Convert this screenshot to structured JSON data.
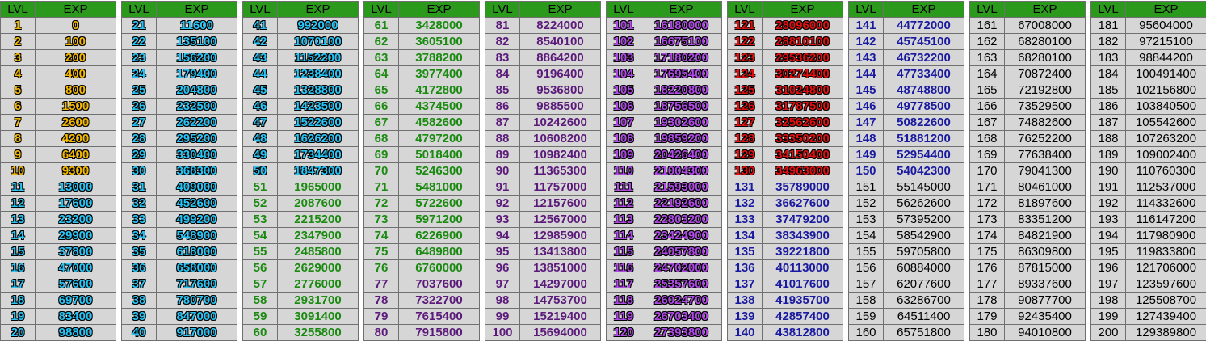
{
  "headers": {
    "level": "LVL",
    "exp": "EXP"
  },
  "tables": [
    {
      "color": "#f5b800",
      "rows": [
        [
          "1",
          "0"
        ],
        [
          "2",
          "100"
        ],
        [
          "3",
          "200"
        ],
        [
          "4",
          "400"
        ],
        [
          "5",
          "800"
        ],
        [
          "6",
          "1500"
        ],
        [
          "7",
          "2600"
        ],
        [
          "8",
          "4200"
        ],
        [
          "9",
          "6400"
        ],
        [
          "10",
          "9300"
        ],
        [
          "11",
          "13000"
        ],
        [
          "12",
          "17600"
        ],
        [
          "13",
          "23200"
        ],
        [
          "14",
          "29900"
        ],
        [
          "15",
          "37800"
        ],
        [
          "16",
          "47000"
        ],
        [
          "17",
          "57600"
        ],
        [
          "18",
          "69700"
        ],
        [
          "19",
          "83400"
        ],
        [
          "20",
          "98800"
        ]
      ],
      "colors": [
        "#f5b800",
        "#f5b800",
        "#f5b800",
        "#f5b800",
        "#f5b800",
        "#f5b800",
        "#f5b800",
        "#f5b800",
        "#f5b800",
        "#f5b800",
        "#29c5f6",
        "#29c5f6",
        "#29c5f6",
        "#29c5f6",
        "#29c5f6",
        "#29c5f6",
        "#29c5f6",
        "#29c5f6",
        "#29c5f6",
        "#29c5f6"
      ]
    },
    {
      "color": "#29c5f6",
      "rows": [
        [
          "21",
          "11600"
        ],
        [
          "22",
          "135100"
        ],
        [
          "23",
          "156200"
        ],
        [
          "24",
          "179400"
        ],
        [
          "25",
          "204800"
        ],
        [
          "26",
          "232500"
        ],
        [
          "27",
          "262200"
        ],
        [
          "28",
          "295200"
        ],
        [
          "29",
          "330400"
        ],
        [
          "30",
          "368300"
        ],
        [
          "31",
          "409000"
        ],
        [
          "32",
          "452600"
        ],
        [
          "33",
          "499200"
        ],
        [
          "34",
          "548900"
        ],
        [
          "35",
          "618000"
        ],
        [
          "36",
          "658000"
        ],
        [
          "37",
          "717600"
        ],
        [
          "38",
          "780700"
        ],
        [
          "39",
          "847000"
        ],
        [
          "40",
          "917000"
        ]
      ],
      "colors": []
    },
    {
      "color": "#29c5f6",
      "rows": [
        [
          "41",
          "992000"
        ],
        [
          "42",
          "1070100"
        ],
        [
          "43",
          "1152200"
        ],
        [
          "44",
          "1238400"
        ],
        [
          "45",
          "1328800"
        ],
        [
          "46",
          "1423500"
        ],
        [
          "47",
          "1522600"
        ],
        [
          "48",
          "1626200"
        ],
        [
          "49",
          "1734400"
        ],
        [
          "50",
          "1847300"
        ],
        [
          "51",
          "1965000"
        ],
        [
          "52",
          "2087600"
        ],
        [
          "53",
          "2215200"
        ],
        [
          "54",
          "2347900"
        ],
        [
          "55",
          "2485800"
        ],
        [
          "56",
          "2629000"
        ],
        [
          "57",
          "2776000"
        ],
        [
          "58",
          "2931700"
        ],
        [
          "59",
          "3091400"
        ],
        [
          "60",
          "3255800"
        ]
      ],
      "colors": [
        "#29c5f6",
        "#29c5f6",
        "#29c5f6",
        "#29c5f6",
        "#29c5f6",
        "#29c5f6",
        "#29c5f6",
        "#29c5f6",
        "#29c5f6",
        "#29c5f6",
        "#1a8a10",
        "#1a8a10",
        "#1a8a10",
        "#1a8a10",
        "#1a8a10",
        "#1a8a10",
        "#1a8a10",
        "#1a8a10",
        "#1a8a10",
        "#1a8a10"
      ]
    },
    {
      "color": "#1a8a10",
      "rows": [
        [
          "61",
          "3428000"
        ],
        [
          "62",
          "3605100"
        ],
        [
          "63",
          "3788200"
        ],
        [
          "64",
          "3977400"
        ],
        [
          "65",
          "4172800"
        ],
        [
          "66",
          "4374500"
        ],
        [
          "67",
          "4582600"
        ],
        [
          "68",
          "4797200"
        ],
        [
          "69",
          "5018400"
        ],
        [
          "70",
          "5246300"
        ],
        [
          "71",
          "5481000"
        ],
        [
          "72",
          "5722600"
        ],
        [
          "73",
          "5971200"
        ],
        [
          "74",
          "6226900"
        ],
        [
          "75",
          "6489800"
        ],
        [
          "76",
          "6760000"
        ],
        [
          "77",
          "7037600"
        ],
        [
          "78",
          "7322700"
        ],
        [
          "79",
          "7615400"
        ],
        [
          "80",
          "7915800"
        ]
      ],
      "colors": [
        "#1a8a10",
        "#1a8a10",
        "#1a8a10",
        "#1a8a10",
        "#1a8a10",
        "#1a8a10",
        "#1a8a10",
        "#1a8a10",
        "#1a8a10",
        "#1a8a10",
        "#1a8a10",
        "#1a8a10",
        "#1a8a10",
        "#1a8a10",
        "#1a8a10",
        "#1a8a10",
        "#5b1a7a",
        "#5b1a7a",
        "#5b1a7a",
        "#5b1a7a"
      ]
    },
    {
      "color": "#5b1a7a",
      "rows": [
        [
          "81",
          "8224000"
        ],
        [
          "82",
          "8540100"
        ],
        [
          "83",
          "8864200"
        ],
        [
          "84",
          "9196400"
        ],
        [
          "85",
          "9536800"
        ],
        [
          "86",
          "9885500"
        ],
        [
          "87",
          "10242600"
        ],
        [
          "88",
          "10608200"
        ],
        [
          "89",
          "10982400"
        ],
        [
          "90",
          "11365300"
        ],
        [
          "91",
          "11757000"
        ],
        [
          "92",
          "12157600"
        ],
        [
          "93",
          "12567000"
        ],
        [
          "94",
          "12985900"
        ],
        [
          "95",
          "13413800"
        ],
        [
          "96",
          "13851000"
        ],
        [
          "97",
          "14297000"
        ],
        [
          "98",
          "14753700"
        ],
        [
          "99",
          "15219400"
        ],
        [
          "100",
          "15694000"
        ]
      ],
      "colors": []
    },
    {
      "color": "#b04ae6",
      "rows": [
        [
          "101",
          "16180000"
        ],
        [
          "102",
          "16675100"
        ],
        [
          "103",
          "17180200"
        ],
        [
          "104",
          "17695400"
        ],
        [
          "105",
          "18220800"
        ],
        [
          "106",
          "18756500"
        ],
        [
          "107",
          "19302600"
        ],
        [
          "108",
          "19859200"
        ],
        [
          "109",
          "20426400"
        ],
        [
          "110",
          "21004300"
        ],
        [
          "111",
          "21593000"
        ],
        [
          "112",
          "22192600"
        ],
        [
          "113",
          "22803200"
        ],
        [
          "114",
          "23424900"
        ],
        [
          "115",
          "24057800"
        ],
        [
          "116",
          "24702000"
        ],
        [
          "117",
          "25357600"
        ],
        [
          "118",
          "26024700"
        ],
        [
          "119",
          "26703400"
        ],
        [
          "120",
          "27393800"
        ]
      ],
      "colors": []
    },
    {
      "color": "#e01010",
      "rows": [
        [
          "121",
          "28096000"
        ],
        [
          "122",
          "28810100"
        ],
        [
          "123",
          "29536200"
        ],
        [
          "124",
          "30274400"
        ],
        [
          "125",
          "31024800"
        ],
        [
          "126",
          "31787500"
        ],
        [
          "127",
          "32562600"
        ],
        [
          "128",
          "33350200"
        ],
        [
          "129",
          "34150400"
        ],
        [
          "130",
          "34963000"
        ],
        [
          "131",
          "35789000"
        ],
        [
          "132",
          "36627600"
        ],
        [
          "133",
          "37479200"
        ],
        [
          "134",
          "38343900"
        ],
        [
          "135",
          "39221800"
        ],
        [
          "136",
          "40113000"
        ],
        [
          "137",
          "41017600"
        ],
        [
          "138",
          "41935700"
        ],
        [
          "139",
          "42857400"
        ],
        [
          "140",
          "43812800"
        ]
      ],
      "colors": [
        "#e01010",
        "#e01010",
        "#e01010",
        "#e01010",
        "#e01010",
        "#e01010",
        "#e01010",
        "#e01010",
        "#e01010",
        "#e01010",
        "#1a1aa0",
        "#1a1aa0",
        "#1a1aa0",
        "#1a1aa0",
        "#1a1aa0",
        "#1a1aa0",
        "#1a1aa0",
        "#1a1aa0",
        "#1a1aa0",
        "#1a1aa0"
      ]
    },
    {
      "color": "#1a1aa0",
      "rows": [
        [
          "141",
          "44772000"
        ],
        [
          "142",
          "45745100"
        ],
        [
          "143",
          "46732200"
        ],
        [
          "144",
          "47733400"
        ],
        [
          "145",
          "48748800"
        ],
        [
          "146",
          "49778500"
        ],
        [
          "147",
          "50822600"
        ],
        [
          "148",
          "51881200"
        ],
        [
          "149",
          "52954400"
        ],
        [
          "150",
          "54042300"
        ],
        [
          "151",
          "55145000"
        ],
        [
          "152",
          "56262600"
        ],
        [
          "153",
          "57395200"
        ],
        [
          "154",
          "58542900"
        ],
        [
          "155",
          "59705800"
        ],
        [
          "156",
          "60884000"
        ],
        [
          "157",
          "62077600"
        ],
        [
          "158",
          "63286700"
        ],
        [
          "159",
          "64511400"
        ],
        [
          "160",
          "65751800"
        ]
      ],
      "colors": [
        "#1a1aa0",
        "#1a1aa0",
        "#1a1aa0",
        "#1a1aa0",
        "#1a1aa0",
        "#1a1aa0",
        "#1a1aa0",
        "#1a1aa0",
        "#1a1aa0",
        "#1a1aa0",
        "plain",
        "plain",
        "plain",
        "plain",
        "plain",
        "plain",
        "plain",
        "plain",
        "plain",
        "plain"
      ]
    },
    {
      "color": "plain",
      "rows": [
        [
          "161",
          "67008000"
        ],
        [
          "162",
          "68280100"
        ],
        [
          "163",
          "68280100"
        ],
        [
          "164",
          "70872400"
        ],
        [
          "165",
          "72192800"
        ],
        [
          "166",
          "73529500"
        ],
        [
          "167",
          "74882600"
        ],
        [
          "168",
          "76252200"
        ],
        [
          "169",
          "77638400"
        ],
        [
          "170",
          "79041300"
        ],
        [
          "171",
          "80461000"
        ],
        [
          "172",
          "81897600"
        ],
        [
          "173",
          "83351200"
        ],
        [
          "174",
          "84821900"
        ],
        [
          "175",
          "86309800"
        ],
        [
          "176",
          "87815000"
        ],
        [
          "177",
          "89337600"
        ],
        [
          "178",
          "90877700"
        ],
        [
          "179",
          "92435400"
        ],
        [
          "180",
          "94010800"
        ]
      ],
      "colors": []
    },
    {
      "color": "plain",
      "rows": [
        [
          "181",
          "95604000"
        ],
        [
          "182",
          "97215100"
        ],
        [
          "183",
          "98844200"
        ],
        [
          "184",
          "100491400"
        ],
        [
          "185",
          "102156800"
        ],
        [
          "186",
          "103840500"
        ],
        [
          "187",
          "105542600"
        ],
        [
          "188",
          "107263200"
        ],
        [
          "189",
          "109002400"
        ],
        [
          "190",
          "110760300"
        ],
        [
          "191",
          "112537000"
        ],
        [
          "192",
          "114332600"
        ],
        [
          "193",
          "116147200"
        ],
        [
          "194",
          "117980900"
        ],
        [
          "195",
          "119833800"
        ],
        [
          "196",
          "121706000"
        ],
        [
          "197",
          "123597600"
        ],
        [
          "198",
          "125508700"
        ],
        [
          "199",
          "127439400"
        ],
        [
          "200",
          "129389800"
        ]
      ],
      "colors": []
    }
  ]
}
